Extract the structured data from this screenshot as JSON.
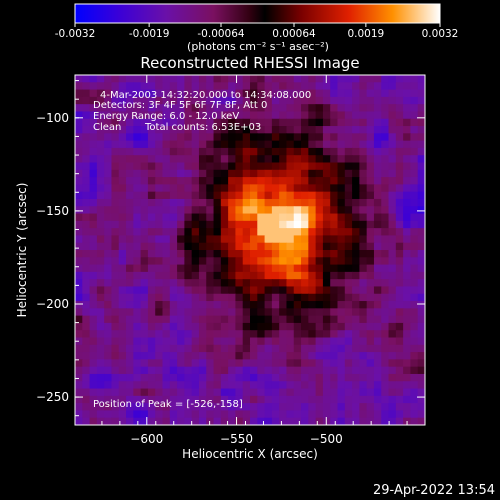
{
  "chart_data": {
    "type": "heatmap",
    "title": "Reconstructed RHESSI Image",
    "xlabel": "Heliocentric X (arcsec)",
    "ylabel": "Heliocentric Y (arcsec)",
    "xlim": [
      -640,
      -445
    ],
    "ylim": [
      -265,
      -77
    ],
    "x_ticks": [
      -600,
      -550,
      -500
    ],
    "y_ticks": [
      -100,
      -150,
      -200,
      -250
    ],
    "colorbar": {
      "range": [
        -0.0032,
        0.0032
      ],
      "tick_values": [
        -0.0032,
        -0.0019,
        -0.00064,
        0.00064,
        0.0019,
        0.0032
      ],
      "tick_labels": [
        "-0.0032",
        "-0.0019",
        "-0.00064",
        "0.00064",
        "0.0019",
        "0.0032"
      ],
      "units_label": "(photons cm⁻² s⁻¹ asec⁻²)"
    },
    "annotations": {
      "time_range": "4-Mar-2003 14:32:20.000 to 14:34:08.000",
      "detectors": "Detectors: 3F 4F 5F 6F 7F 8F, Att 0",
      "energy": "Energy Range: 6.0 - 12.0 keV",
      "method": "Clean",
      "total_counts": "Total counts: 6.53E+03",
      "peak": "Position of Peak = [-526,-158]"
    },
    "peak_position": [
      -526,
      -158
    ]
  },
  "timestamp": "29-Apr-2022 13:54"
}
